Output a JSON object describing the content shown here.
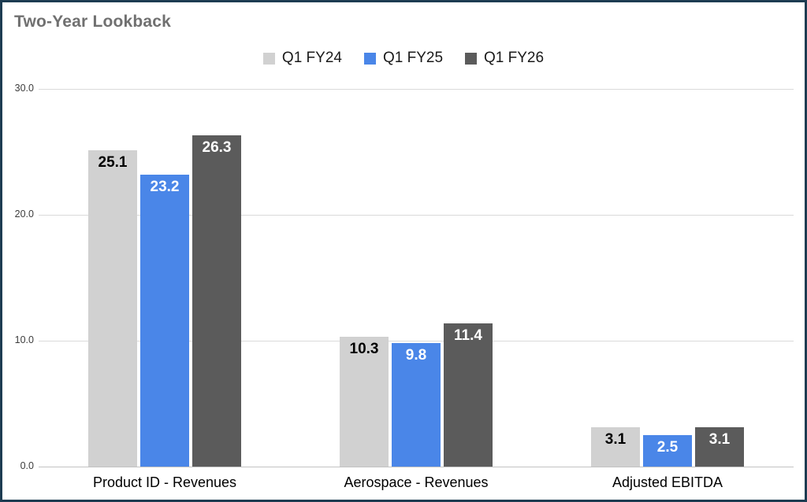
{
  "title": "Two-Year Lookback",
  "colors": {
    "frame_border": "#1d3c52",
    "background": "#ffffff",
    "title_text": "#707070",
    "gridline": "#dadada"
  },
  "chart_data": {
    "type": "bar",
    "title": "Two-Year Lookback",
    "categories": [
      "Product ID - Revenues",
      "Aerospace - Revenues",
      "Adjusted EBITDA"
    ],
    "series": [
      {
        "name": "Q1 FY24",
        "color": "#d1d1d1",
        "label_color": "#000000",
        "values": [
          25.1,
          10.3,
          3.1
        ]
      },
      {
        "name": "Q1 FY25",
        "color": "#4a86e8",
        "label_color": "#ffffff",
        "values": [
          23.2,
          9.8,
          2.5
        ]
      },
      {
        "name": "Q1 FY26",
        "color": "#5b5b5b",
        "label_color": "#ffffff",
        "values": [
          26.3,
          11.4,
          3.1
        ]
      }
    ],
    "xlabel": "",
    "ylabel": "",
    "ylim": [
      0,
      30
    ],
    "y_ticks": [
      0,
      10,
      20,
      30
    ],
    "y_tick_labels": [
      "0.0",
      "10.0",
      "20.0",
      "30.0"
    ],
    "grid": true,
    "legend_position": "top",
    "data_labels_shown": true
  }
}
